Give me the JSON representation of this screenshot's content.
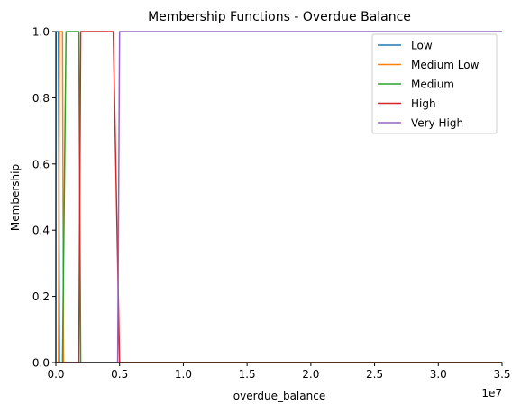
{
  "chart_data": {
    "type": "line",
    "title": "Membership Functions - Overdue Balance",
    "xlabel": "overdue_balance",
    "ylabel": "Membership",
    "x_scale_label": "1e7",
    "x_scale": 10000000,
    "xlim": [
      0,
      35000000
    ],
    "ylim": [
      0,
      1
    ],
    "x_ticks": [
      0,
      5000000,
      10000000,
      15000000,
      20000000,
      25000000,
      30000000,
      35000000
    ],
    "x_tick_labels": [
      "0.0",
      "0.5",
      "1.0",
      "1.5",
      "2.0",
      "2.5",
      "3.0",
      "3.5"
    ],
    "y_ticks": [
      0,
      0.2,
      0.4,
      0.6,
      0.8,
      1.0
    ],
    "y_tick_labels": [
      "0.0",
      "0.2",
      "0.4",
      "0.6",
      "0.8",
      "1.0"
    ],
    "grid": false,
    "legend_position": "top-right",
    "series": [
      {
        "name": "Low",
        "color": "#1f77b4",
        "x": [
          0,
          10000,
          200000,
          280000,
          35000000
        ],
        "y": [
          0,
          1,
          1,
          0,
          0
        ]
      },
      {
        "name": "Medium Low",
        "color": "#ff7f0e",
        "x": [
          0,
          200000,
          280000,
          520000,
          600000,
          35000000
        ],
        "y": [
          0,
          0,
          1,
          1,
          0,
          0
        ]
      },
      {
        "name": "Medium",
        "color": "#2ca02c",
        "x": [
          0,
          520000,
          800000,
          1800000,
          1950000,
          35000000
        ],
        "y": [
          0,
          0,
          1,
          1,
          0,
          0
        ]
      },
      {
        "name": "High",
        "color": "#d62728",
        "x": [
          0,
          1800000,
          1950000,
          4500000,
          5000000,
          35000000
        ],
        "y": [
          0,
          0,
          1,
          1,
          0,
          0
        ]
      },
      {
        "name": "Very High",
        "color": "#9467bd",
        "x": [
          0,
          4850000,
          5000000,
          35000000
        ],
        "y": [
          0,
          0,
          1,
          1
        ]
      }
    ]
  }
}
